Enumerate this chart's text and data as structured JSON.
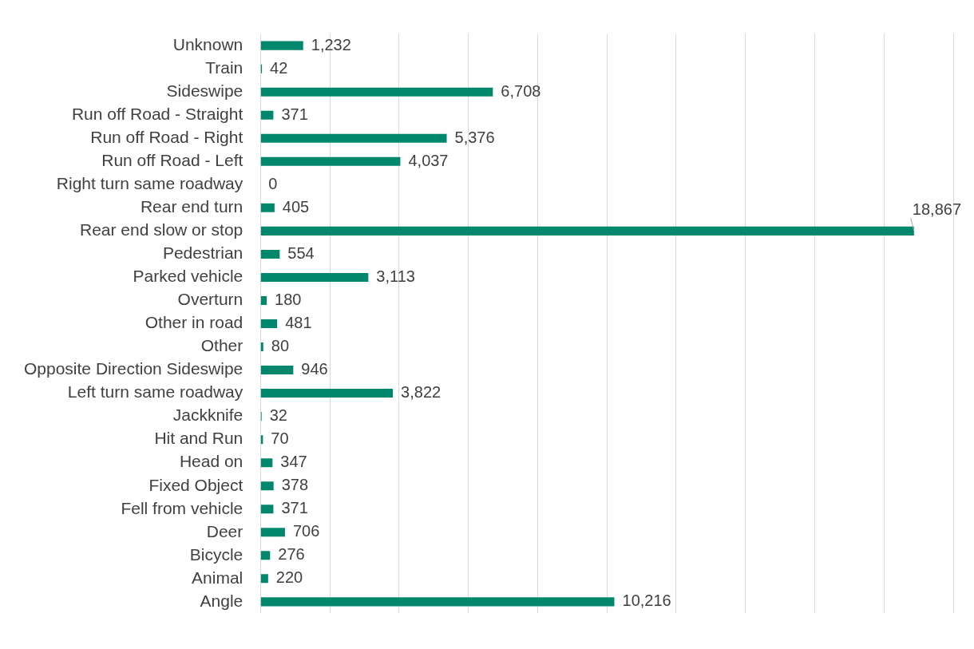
{
  "chart_data": {
    "type": "bar",
    "orientation": "horizontal",
    "categories": [
      "Unknown",
      "Train",
      "Sideswipe",
      "Run off Road - Straight",
      "Run off Road - Right",
      "Run off Road - Left",
      "Right turn same roadway",
      "Rear end turn",
      "Rear end slow or stop",
      "Pedestrian",
      "Parked vehicle",
      "Overturn",
      "Other in road",
      "Other",
      "Opposite Direction Sideswipe",
      "Left turn same roadway",
      "Jackknife",
      "Hit and Run",
      "Head on",
      "Fixed Object",
      "Fell from vehicle",
      "Deer",
      "Bicycle",
      "Animal",
      "Angle"
    ],
    "values": [
      1232,
      42,
      6708,
      371,
      5376,
      4037,
      0,
      405,
      18867,
      554,
      3113,
      180,
      481,
      80,
      946,
      3822,
      32,
      70,
      347,
      378,
      371,
      706,
      276,
      220,
      10216
    ],
    "value_labels": [
      "1,232",
      "42",
      "6,708",
      "371",
      "5,376",
      "4,037",
      "0",
      "405",
      "18,867",
      "554",
      "3,113",
      "180",
      "481",
      "80",
      "946",
      "3,822",
      "32",
      "70",
      "347",
      "378",
      "371",
      "706",
      "276",
      "220",
      "10,216"
    ],
    "color": "#00876c",
    "xlim": [
      0,
      20000
    ],
    "xticks": [
      {
        "value": 0,
        "label": null
      },
      {
        "value": 2000,
        "label": null
      },
      {
        "value": 4000,
        "label": null
      },
      {
        "value": 6000,
        "label": null
      },
      {
        "value": 8000,
        "label": null
      },
      {
        "value": 10000,
        "label": null
      },
      {
        "value": 12000,
        "label": null
      },
      {
        "value": 14000,
        "label": null
      },
      {
        "value": 16000,
        "label": null
      },
      {
        "value": 18000,
        "label": null
      },
      {
        "value": 20000,
        "label": null
      }
    ],
    "grid": "x",
    "tick_labels": "y",
    "legend": false
  }
}
